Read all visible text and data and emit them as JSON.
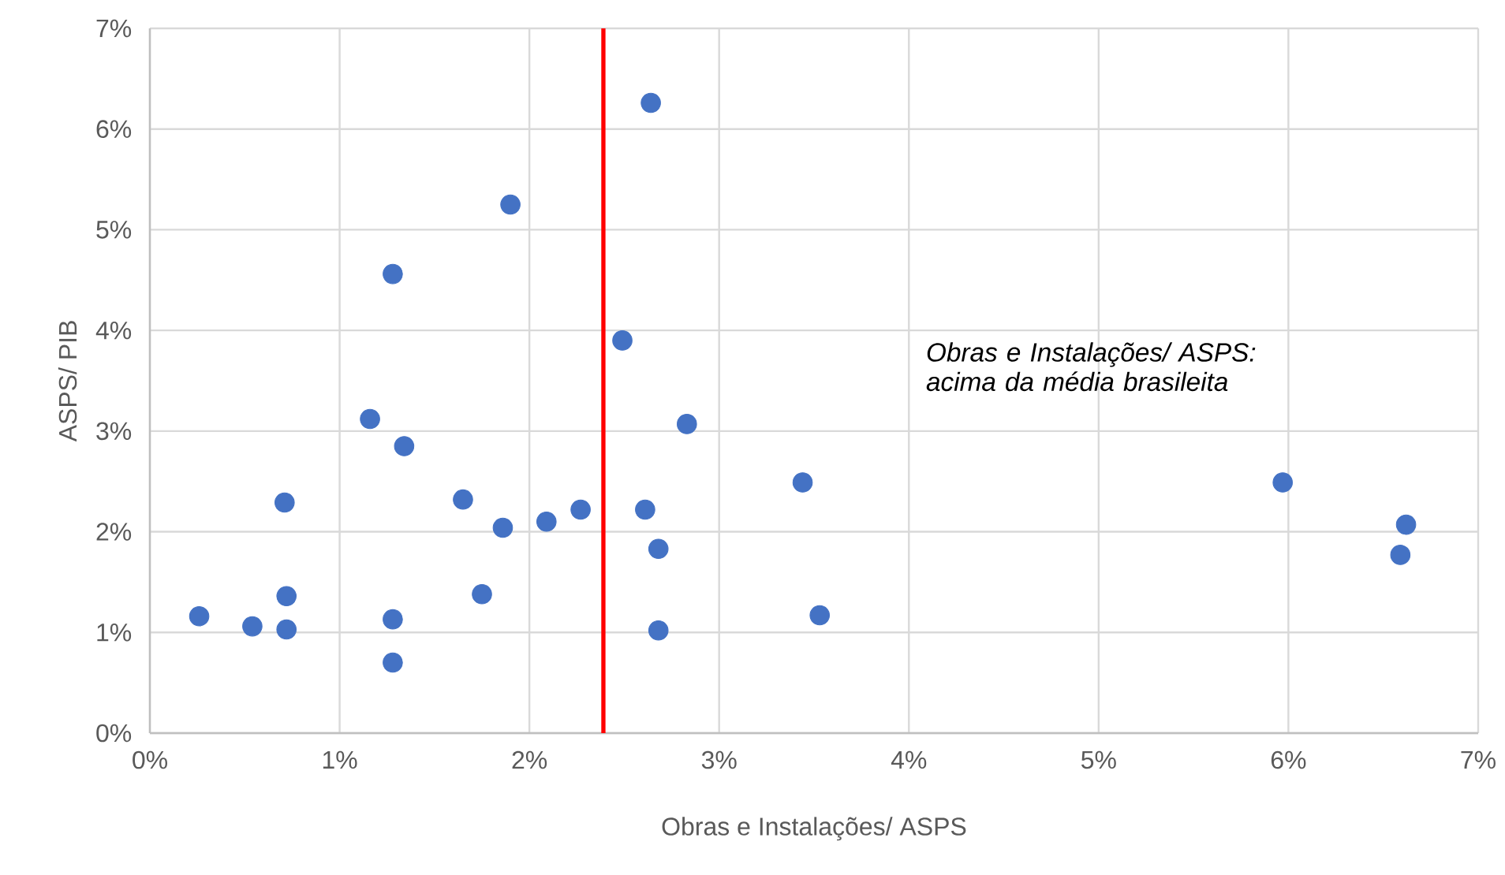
{
  "chart_data": {
    "type": "scatter",
    "xlabel": "Obras e Instalações/ ASPS",
    "ylabel": "ASPS/ PIB",
    "annotations": [
      "Obras e Instalações/ ASPS: acima da média brasileita"
    ],
    "x": [
      0.26,
      0.54,
      0.72,
      0.72,
      0.71,
      1.16,
      1.28,
      1.28,
      1.28,
      1.34,
      1.65,
      1.75,
      1.86,
      1.9,
      2.09,
      2.27,
      2.49,
      2.61,
      2.64,
      2.68,
      2.68,
      2.83,
      3.44,
      3.53,
      5.97,
      6.62,
      6.59
    ],
    "values": [
      1.16,
      1.06,
      1.36,
      1.03,
      2.29,
      3.12,
      4.56,
      1.13,
      0.7,
      2.85,
      2.32,
      1.38,
      2.04,
      5.25,
      2.1,
      2.22,
      3.9,
      2.22,
      6.26,
      1.83,
      1.02,
      3.07,
      2.49,
      1.17,
      2.49,
      2.07,
      1.77
    ],
    "color": "#4472c4",
    "marker": "circle",
    "grid": true,
    "xlim": [
      0,
      7
    ],
    "ylim": [
      0,
      7
    ],
    "xticks": [
      {
        "value": 0,
        "label": "0%"
      },
      {
        "value": 1,
        "label": "1%"
      },
      {
        "value": 2,
        "label": "2%"
      },
      {
        "value": 3,
        "label": "3%"
      },
      {
        "value": 4,
        "label": "4%"
      },
      {
        "value": 5,
        "label": "5%"
      },
      {
        "value": 6,
        "label": "6%"
      },
      {
        "value": 7,
        "label": "7%"
      }
    ],
    "yticks": [
      {
        "value": 0,
        "label": "0%"
      },
      {
        "value": 1,
        "label": "1%"
      },
      {
        "value": 2,
        "label": "2%"
      },
      {
        "value": 3,
        "label": "3%"
      },
      {
        "value": 4,
        "label": "4%"
      },
      {
        "value": 5,
        "label": "5%"
      },
      {
        "value": 6,
        "label": "6%"
      },
      {
        "value": 7,
        "label": "7%"
      }
    ],
    "ref_lines": [
      {
        "axis": "x",
        "value": 2.39,
        "color": "#ff0000"
      }
    ]
  }
}
